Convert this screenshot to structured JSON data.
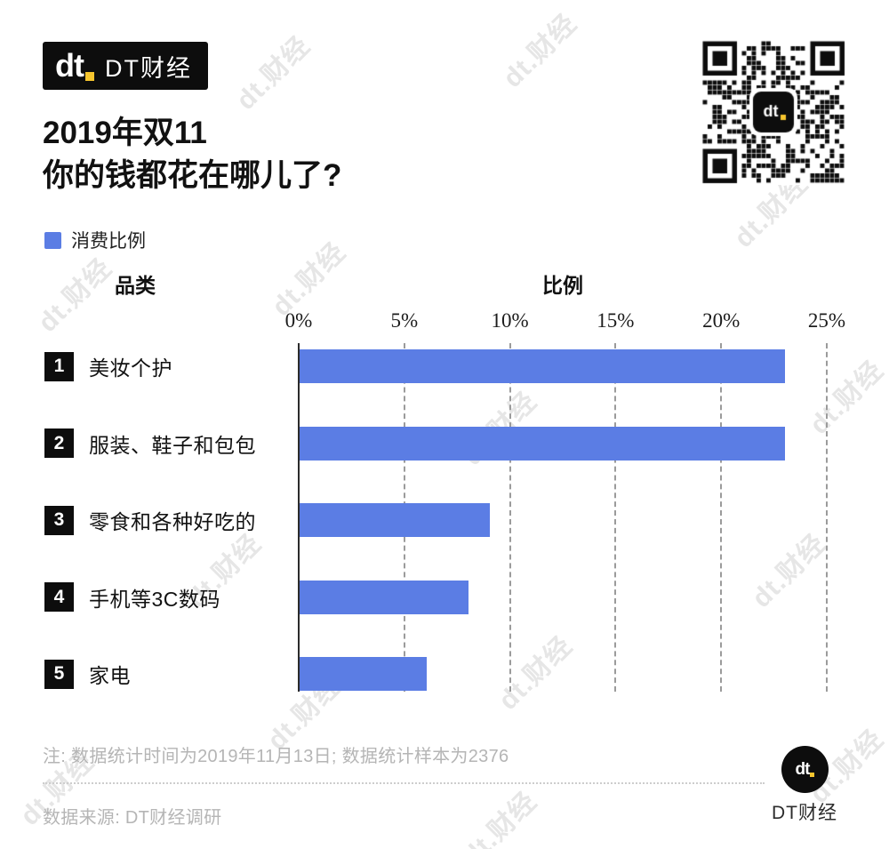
{
  "brand": {
    "logo_mark": "dt",
    "logo_name": "DT财经",
    "footer_logo_mark": "dt",
    "footer_logo_name": "DT财经",
    "colors": {
      "accent_blue": "#5b7de4",
      "brand_yellow": "#f6c52e",
      "brand_black": "#0d0d0d"
    }
  },
  "header": {
    "title_line1": "2019年双11",
    "title_line2": "你的钱都花在哪儿了?"
  },
  "legend": {
    "label": "消费比例",
    "swatch_color": "#5b7de4"
  },
  "chart_data": {
    "type": "bar",
    "orientation": "horizontal",
    "title": "2019年双11 你的钱都花在哪儿了?",
    "series_name": "消费比例",
    "column_headers": {
      "category": "品类",
      "value": "比例"
    },
    "ranks": [
      "1",
      "2",
      "3",
      "4",
      "5"
    ],
    "categories": [
      "美妆个护",
      "服装、鞋子和包包",
      "零食和各种好吃的",
      "手机等3C数码",
      "家电"
    ],
    "values": [
      23,
      23,
      9,
      8,
      6
    ],
    "unit": "%",
    "xlim": [
      0,
      25
    ],
    "x_tick_values": [
      0,
      5,
      10,
      15,
      20,
      25
    ],
    "x_tick_labels": [
      "0%",
      "5%",
      "10%",
      "15%",
      "20%",
      "25%"
    ],
    "grid": "dashed-vertical",
    "bar_color": "#5b7de4"
  },
  "footer": {
    "note": "注: 数据统计时间为2019年11月13日; 数据统计样本为2376",
    "source": "数据来源: DT财经调研"
  },
  "watermark": {
    "text": "dt.财经"
  }
}
